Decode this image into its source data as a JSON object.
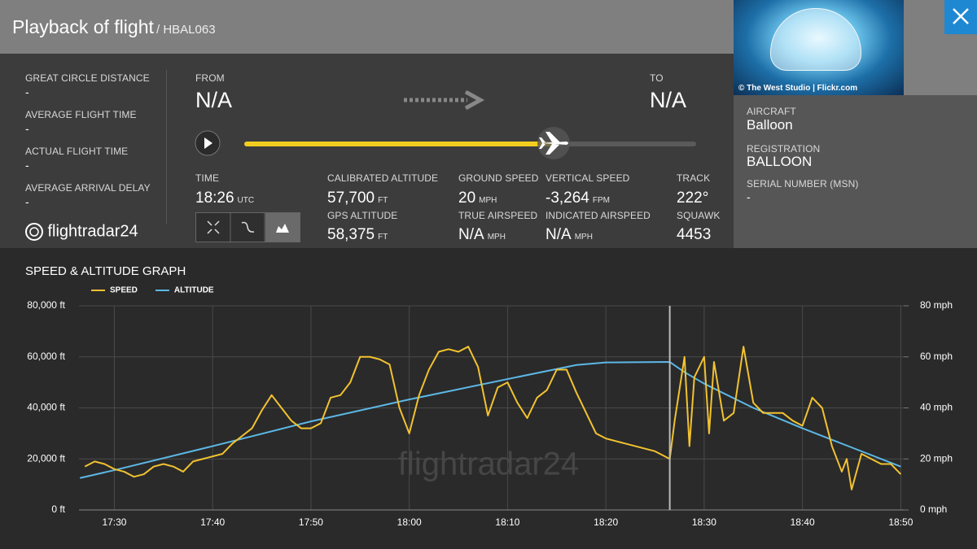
{
  "brand": "flightradar24",
  "header": {
    "title": "Playback of flight",
    "flight": "/ HBAL063"
  },
  "stats": [
    {
      "label": "GREAT CIRCLE DISTANCE",
      "value": "-"
    },
    {
      "label": "AVERAGE FLIGHT TIME",
      "value": "-"
    },
    {
      "label": "ACTUAL FLIGHT TIME",
      "value": "-"
    },
    {
      "label": "AVERAGE ARRIVAL DELAY",
      "value": "-"
    }
  ],
  "route": {
    "from_label": "FROM",
    "from": "N/A",
    "to_label": "TO",
    "to": "N/A"
  },
  "metrics": [
    {
      "label": "TIME",
      "value": "18:26",
      "unit": "UTC"
    },
    {
      "label": "CALIBRATED ALTITUDE",
      "value": "57,700",
      "unit": "FT"
    },
    {
      "label": "GPS ALTITUDE",
      "value": "58,375",
      "unit": "FT"
    },
    {
      "label": "GROUND SPEED",
      "value": "20",
      "unit": "MPH"
    },
    {
      "label": "TRUE AIRSPEED",
      "value": "N/A",
      "unit": "MPH"
    },
    {
      "label": "VERTICAL SPEED",
      "value": "-3,264",
      "unit": "FPM"
    },
    {
      "label": "INDICATED AIRSPEED",
      "value": "N/A",
      "unit": "MPH"
    },
    {
      "label": "TRACK",
      "value": "222°"
    },
    {
      "label": "SQUAWK",
      "value": "4453"
    }
  ],
  "aircraft": {
    "photo_credit": "© The West Studio | Flickr.com",
    "fields": [
      {
        "label": "AIRCRAFT",
        "value": "Balloon"
      },
      {
        "label": "REGISTRATION",
        "value": "BALLOON"
      },
      {
        "label": "SERIAL NUMBER (MSN)",
        "value": "-"
      }
    ]
  },
  "chart_data": {
    "type": "line",
    "title": "SPEED & ALTITUDE GRAPH",
    "grid": true,
    "legend": "top-left",
    "cursor_x": 1106.5,
    "xlim": [
      1046.4,
      1130.3
    ],
    "xticks": [
      {
        "value": 1050,
        "label": "17:30"
      },
      {
        "value": 1060,
        "label": "17:40"
      },
      {
        "value": 1070,
        "label": "17:50"
      },
      {
        "value": 1080,
        "label": "18:00"
      },
      {
        "value": 1090,
        "label": "18:10"
      },
      {
        "value": 1100,
        "label": "18:20"
      },
      {
        "value": 1110,
        "label": "18:30"
      },
      {
        "value": 1120,
        "label": "18:40"
      },
      {
        "value": 1130,
        "label": "18:50"
      }
    ],
    "ylim": [
      0,
      80000
    ],
    "yticks": [
      {
        "value": 0,
        "label": "0 ft"
      },
      {
        "value": 20000,
        "label": "20,000 ft"
      },
      {
        "value": 40000,
        "label": "40,000 ft"
      },
      {
        "value": 60000,
        "label": "60,000 ft"
      },
      {
        "value": 80000,
        "label": "80,000 ft"
      }
    ],
    "y2lim": [
      0,
      80
    ],
    "y2ticks": [
      {
        "value": 0,
        "label": "0 mph"
      },
      {
        "value": 20,
        "label": "20 mph"
      },
      {
        "value": 40,
        "label": "40 mph"
      },
      {
        "value": 60,
        "label": "60 mph"
      },
      {
        "value": 80,
        "label": "80 mph"
      }
    ],
    "series": [
      {
        "name": "SPEED",
        "color": "#f2c230",
        "axis": "y2",
        "x": [
          1047,
          1048,
          1049,
          1050,
          1051,
          1052,
          1053,
          1054,
          1055,
          1056,
          1057,
          1058,
          1059,
          1060,
          1061,
          1062,
          1063,
          1064,
          1065,
          1066,
          1067,
          1068,
          1069,
          1070,
          1071,
          1072,
          1073,
          1074,
          1075,
          1076,
          1077,
          1078,
          1079,
          1080,
          1081,
          1082,
          1083,
          1084,
          1085,
          1086,
          1087,
          1088,
          1089,
          1090,
          1091,
          1092,
          1093,
          1094,
          1095,
          1096,
          1097,
          1098,
          1099,
          1100,
          1101,
          1102,
          1103,
          1104,
          1105,
          1106,
          1106.5,
          1107,
          1108,
          1108.5,
          1109,
          1110,
          1110.5,
          1111,
          1112,
          1113,
          1114,
          1115,
          1116,
          1117,
          1118,
          1119,
          1120,
          1121,
          1122,
          1123,
          1124,
          1124.5,
          1125,
          1126,
          1127,
          1128,
          1129,
          1130
        ],
        "values": [
          17,
          19,
          18,
          16,
          15,
          13,
          14,
          17,
          18,
          17,
          15,
          19,
          20,
          21,
          22,
          26,
          29,
          32,
          39,
          45,
          40,
          35,
          32,
          32,
          34,
          44,
          45,
          50,
          60,
          60,
          59,
          57,
          40,
          30,
          45,
          55,
          62,
          63,
          62,
          64,
          56,
          37,
          48,
          50,
          42,
          36,
          44,
          47,
          55,
          55,
          46,
          38,
          30,
          28,
          27,
          26,
          25,
          24,
          23,
          21,
          20,
          35,
          60,
          25,
          52,
          60,
          30,
          58,
          35,
          38,
          64,
          42,
          38,
          38,
          38,
          35,
          33,
          44,
          40,
          25,
          15,
          20,
          8,
          22,
          20,
          18,
          18,
          14
        ]
      },
      {
        "name": "ALTITUDE",
        "color": "#5cb8e6",
        "x": [
          1046.5,
          1050,
          1060,
          1070,
          1080,
          1090,
          1097,
          1100,
          1106.5,
          1108,
          1110,
          1115,
          1120,
          1125,
          1130
        ],
        "values": [
          12500,
          15600,
          25000,
          34700,
          43300,
          51300,
          56800,
          57800,
          58000,
          54000,
          49500,
          40000,
          32000,
          24500,
          17000
        ]
      }
    ]
  }
}
